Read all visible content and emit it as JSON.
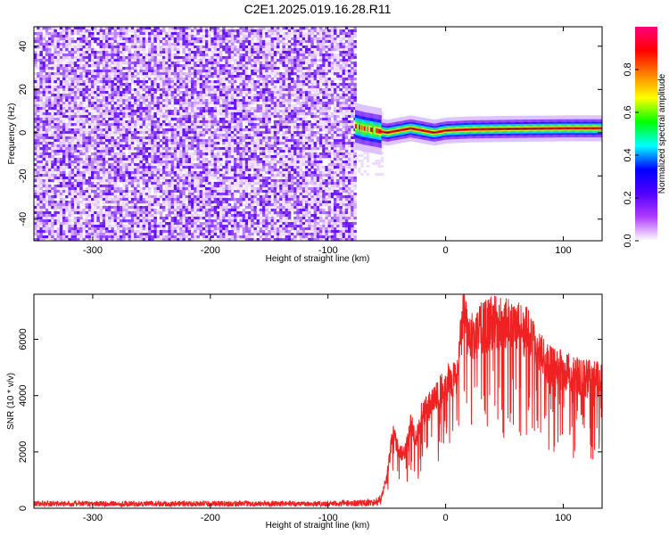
{
  "title": "C2E1.2025.019.16.28.R11",
  "chart_data": [
    {
      "type": "heatmap",
      "name": "spectrogram",
      "xlabel": "Height of straight line (km)",
      "ylabel": "Frequency (Hz)",
      "xlim": [
        -350,
        133
      ],
      "ylim": [
        -50,
        49
      ],
      "xticks": [
        -300,
        -200,
        -100,
        0,
        100
      ],
      "yticks": [
        -40,
        -20,
        0,
        20,
        40
      ],
      "noise_region_x": [
        -350,
        -77
      ],
      "signal_region_x": [
        -77,
        133
      ],
      "signal_center_frequency": [
        [
          -77,
          3
        ],
        [
          -70,
          2
        ],
        [
          -60,
          1
        ],
        [
          -50,
          0
        ],
        [
          -40,
          1
        ],
        [
          -30,
          2
        ],
        [
          -20,
          1
        ],
        [
          -10,
          0
        ],
        [
          0,
          1
        ],
        [
          20,
          1.5
        ],
        [
          60,
          1.8
        ],
        [
          100,
          2
        ],
        [
          133,
          2
        ]
      ],
      "colorbar": {
        "label": "Normalized spectral amplitude",
        "range": [
          0,
          1
        ],
        "ticks": [
          "0.0",
          "0.2",
          "0.4",
          "0.6",
          "0.8"
        ],
        "colors": [
          "#ffffff",
          "#b03cff",
          "#5000ff",
          "#0000ff",
          "#00ffff",
          "#00ff00",
          "#ffff00",
          "#ff8000",
          "#ff0000",
          "#ff0080"
        ]
      }
    },
    {
      "type": "line",
      "name": "snr",
      "xlabel": "Height of straight line (km)",
      "ylabel": "SNR (10 * v/v)",
      "xlim": [
        -350,
        133
      ],
      "ylim": [
        0,
        7600
      ],
      "xticks": [
        -300,
        -200,
        -100,
        0,
        100
      ],
      "yticks": [
        0,
        2000,
        4000,
        6000
      ],
      "color": "#ee2222",
      "envelope": [
        [
          -350,
          200
        ],
        [
          -100,
          200
        ],
        [
          -60,
          250
        ],
        [
          -55,
          400
        ],
        [
          -50,
          1200
        ],
        [
          -45,
          2800
        ],
        [
          -40,
          2200
        ],
        [
          -35,
          2000
        ],
        [
          -30,
          3200
        ],
        [
          -25,
          2600
        ],
        [
          -20,
          3600
        ],
        [
          -10,
          4000
        ],
        [
          0,
          4700
        ],
        [
          10,
          5000
        ],
        [
          15,
          7500
        ],
        [
          20,
          6300
        ],
        [
          30,
          6800
        ],
        [
          40,
          7000
        ],
        [
          50,
          7000
        ],
        [
          60,
          6900
        ],
        [
          70,
          6600
        ],
        [
          80,
          5800
        ],
        [
          90,
          5400
        ],
        [
          100,
          5200
        ],
        [
          110,
          5000
        ],
        [
          120,
          4900
        ],
        [
          133,
          4900
        ]
      ]
    }
  ]
}
